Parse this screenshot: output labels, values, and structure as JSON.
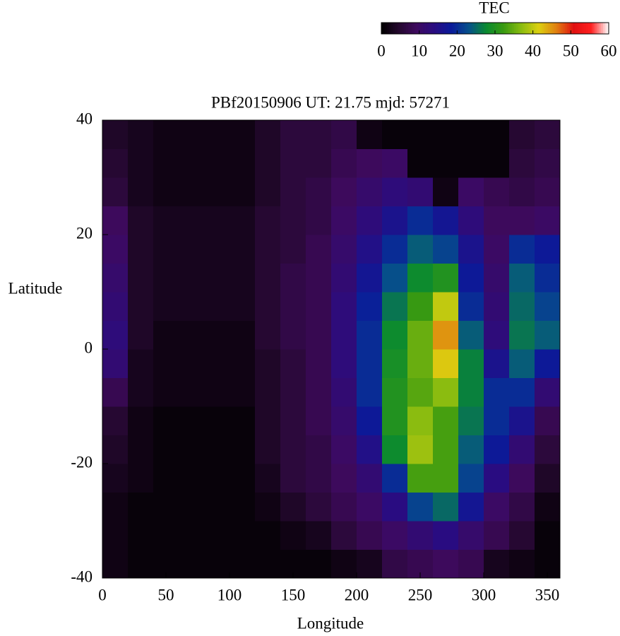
{
  "chart_data": {
    "type": "heatmap",
    "title": "PBf20150906  UT: 21.75  mjd: 57271",
    "xlabel": "Longitude",
    "ylabel": "Latitude",
    "xlim": [
      0,
      360
    ],
    "xticks": [
      0,
      50,
      100,
      150,
      200,
      250,
      300,
      350
    ],
    "ylim": [
      -40,
      40
    ],
    "yticks": [
      -40,
      -20,
      0,
      20,
      40
    ],
    "xbins": [
      0,
      20,
      40,
      60,
      80,
      100,
      120,
      140,
      160,
      180,
      200,
      220,
      240,
      260,
      280,
      300,
      320,
      340,
      360
    ],
    "ybins": [
      -40,
      -35,
      -30,
      -25,
      -20,
      -15,
      -10,
      -5,
      0,
      5,
      10,
      15,
      20,
      25,
      30,
      35,
      40
    ],
    "values": [
      [
        2,
        1,
        1,
        1,
        1,
        1,
        1,
        1,
        1,
        2,
        3,
        7,
        8,
        9,
        8,
        3,
        2,
        1
      ],
      [
        2,
        1,
        1,
        1,
        1,
        1,
        1,
        2,
        3,
        6,
        8,
        10,
        12,
        14,
        11,
        8,
        5,
        1
      ],
      [
        2,
        1,
        1,
        1,
        1,
        1,
        2,
        4,
        6,
        8,
        10,
        14,
        22,
        25,
        17,
        10,
        7,
        2
      ],
      [
        3,
        2,
        1,
        1,
        1,
        1,
        3,
        6,
        7,
        9,
        12,
        20,
        33,
        33,
        22,
        14,
        9,
        4
      ],
      [
        4,
        2,
        1,
        1,
        1,
        1,
        4,
        6,
        7,
        10,
        15,
        28,
        38,
        33,
        24,
        18,
        12,
        6
      ],
      [
        5,
        2,
        1,
        1,
        1,
        1,
        4,
        6,
        8,
        11,
        18,
        30,
        37,
        33,
        26,
        20,
        16,
        8
      ],
      [
        8,
        3,
        2,
        2,
        2,
        2,
        4,
        6,
        8,
        12,
        20,
        30,
        34,
        37,
        27,
        20,
        20,
        12
      ],
      [
        12,
        3,
        2,
        2,
        2,
        2,
        4,
        6,
        8,
        13,
        20,
        29,
        35,
        42,
        27,
        16,
        24,
        18
      ],
      [
        13,
        4,
        2,
        2,
        2,
        2,
        5,
        7,
        8,
        13,
        20,
        28,
        35,
        45,
        24,
        13,
        26,
        24
      ],
      [
        12,
        4,
        3,
        3,
        3,
        3,
        5,
        7,
        8,
        13,
        19,
        26,
        32,
        40,
        20,
        12,
        25,
        22
      ],
      [
        11,
        4,
        3,
        3,
        3,
        3,
        5,
        7,
        8,
        12,
        17,
        23,
        28,
        30,
        18,
        11,
        24,
        20
      ],
      [
        10,
        4,
        3,
        3,
        3,
        3,
        5,
        6,
        8,
        11,
        15,
        20,
        24,
        22,
        16,
        10,
        20,
        18
      ],
      [
        9,
        4,
        3,
        3,
        3,
        3,
        5,
        6,
        7,
        10,
        13,
        16,
        20,
        17,
        13,
        9,
        9,
        10
      ],
      [
        6,
        3,
        2,
        2,
        2,
        2,
        4,
        6,
        7,
        9,
        11,
        13,
        12,
        2,
        10,
        8,
        7,
        8
      ],
      [
        5,
        3,
        2,
        2,
        2,
        2,
        4,
        6,
        6,
        8,
        9,
        10,
        1,
        1,
        1,
        1,
        6,
        7
      ],
      [
        4,
        3,
        2,
        2,
        2,
        2,
        4,
        6,
        6,
        7,
        2,
        1,
        1,
        1,
        1,
        1,
        5,
        6
      ]
    ],
    "colorbar": {
      "label": "TEC",
      "lim": [
        0,
        60
      ],
      "ticks": [
        0,
        10,
        20,
        30,
        40,
        50,
        60
      ]
    },
    "colormap": [
      "#000000",
      "#24082e",
      "#3e0a5e",
      "#2a0c80",
      "#0a1a9a",
      "#06508a",
      "#0a8a30",
      "#3a9a10",
      "#8abc10",
      "#dcd010",
      "#e08010",
      "#e01010",
      "#ff2020",
      "#ffffff"
    ]
  }
}
